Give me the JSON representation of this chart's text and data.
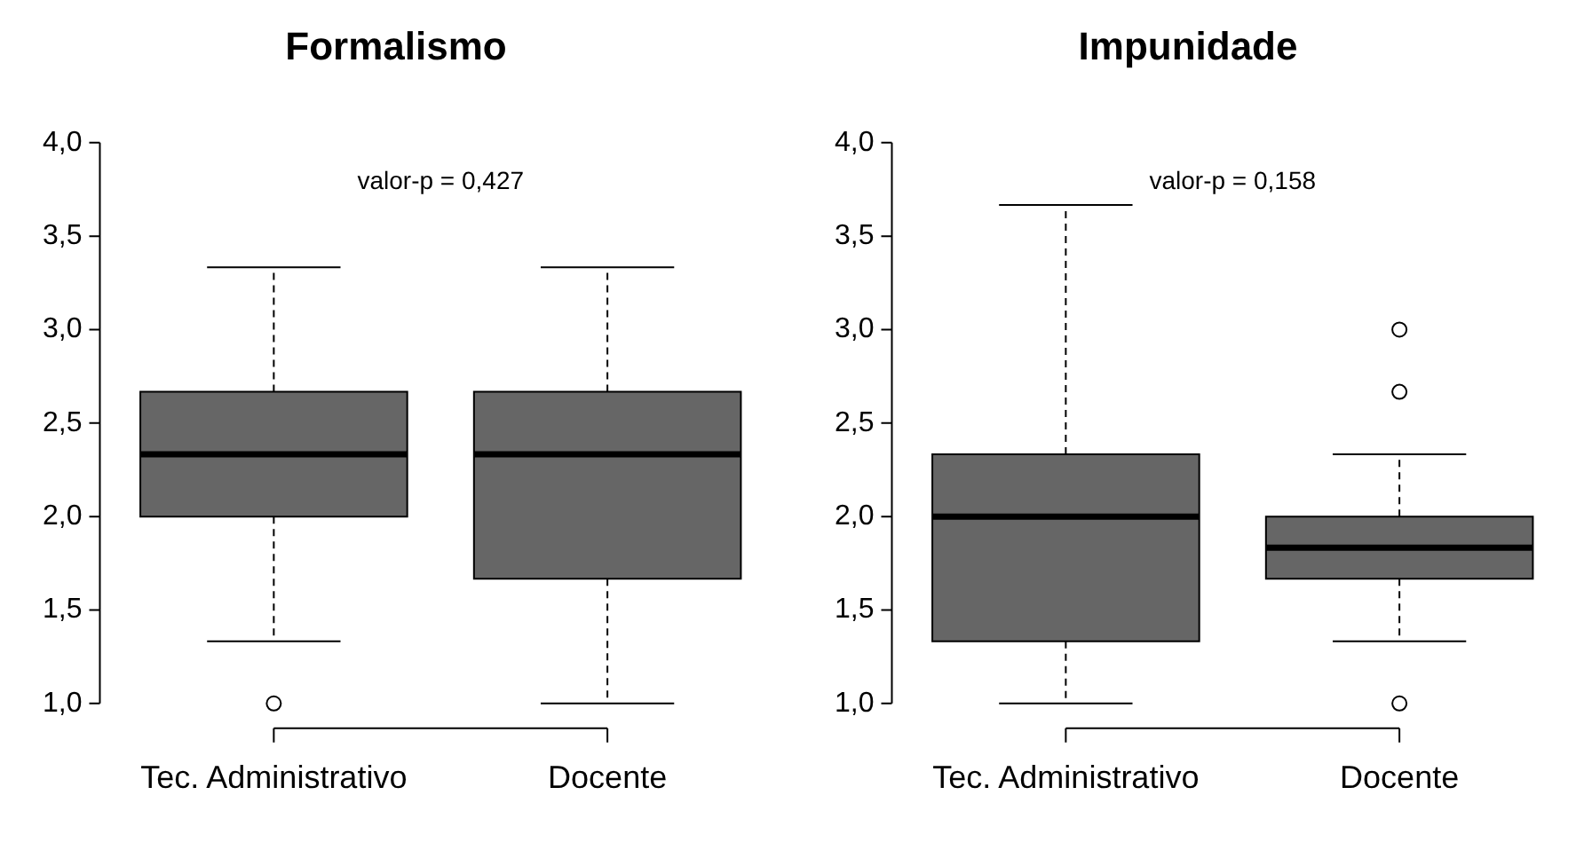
{
  "chart_data": [
    {
      "type": "box",
      "title": "Formalismo",
      "categories": [
        "Tec. Administrativo",
        "Docente"
      ],
      "color": "#666666",
      "marker": "circle",
      "ylim": [
        1,
        4
      ],
      "yticks": [
        {
          "value": 1,
          "label": "1,0"
        },
        {
          "value": 1.5,
          "label": "1,5"
        },
        {
          "value": 2,
          "label": "2,0"
        },
        {
          "value": 2.5,
          "label": "2,5"
        },
        {
          "value": 3,
          "label": "3,0"
        },
        {
          "value": 3.5,
          "label": "3,5"
        },
        {
          "value": 4,
          "label": "4,0"
        }
      ],
      "annotations": [
        "valor-p = 0,427"
      ],
      "boxes": [
        {
          "low": 1.333,
          "q1": 2.0,
          "median": 2.333,
          "q3": 2.667,
          "high": 3.333,
          "outliers": [
            1.0
          ]
        },
        {
          "low": 1.0,
          "q1": 1.667,
          "median": 2.333,
          "q3": 2.667,
          "high": 3.333
        }
      ]
    },
    {
      "type": "box",
      "title": "Impunidade",
      "categories": [
        "Tec. Administrativo",
        "Docente"
      ],
      "color": "#666666",
      "marker": "circle",
      "ylim": [
        1,
        4
      ],
      "yticks": [
        {
          "value": 1,
          "label": "1,0"
        },
        {
          "value": 1.5,
          "label": "1,5"
        },
        {
          "value": 2,
          "label": "2,0"
        },
        {
          "value": 2.5,
          "label": "2,5"
        },
        {
          "value": 3,
          "label": "3,0"
        },
        {
          "value": 3.5,
          "label": "3,5"
        },
        {
          "value": 4,
          "label": "4,0"
        }
      ],
      "annotations": [
        "valor-p = 0,158"
      ],
      "boxes": [
        {
          "low": 1.0,
          "q1": 1.333,
          "median": 2.0,
          "q3": 2.333,
          "high": 3.667
        },
        {
          "low": 1.333,
          "q1": 1.667,
          "median": 1.833,
          "q3": 2.0,
          "high": 2.333,
          "outliers": [
            1.0,
            2.667,
            3.0
          ]
        }
      ]
    }
  ]
}
